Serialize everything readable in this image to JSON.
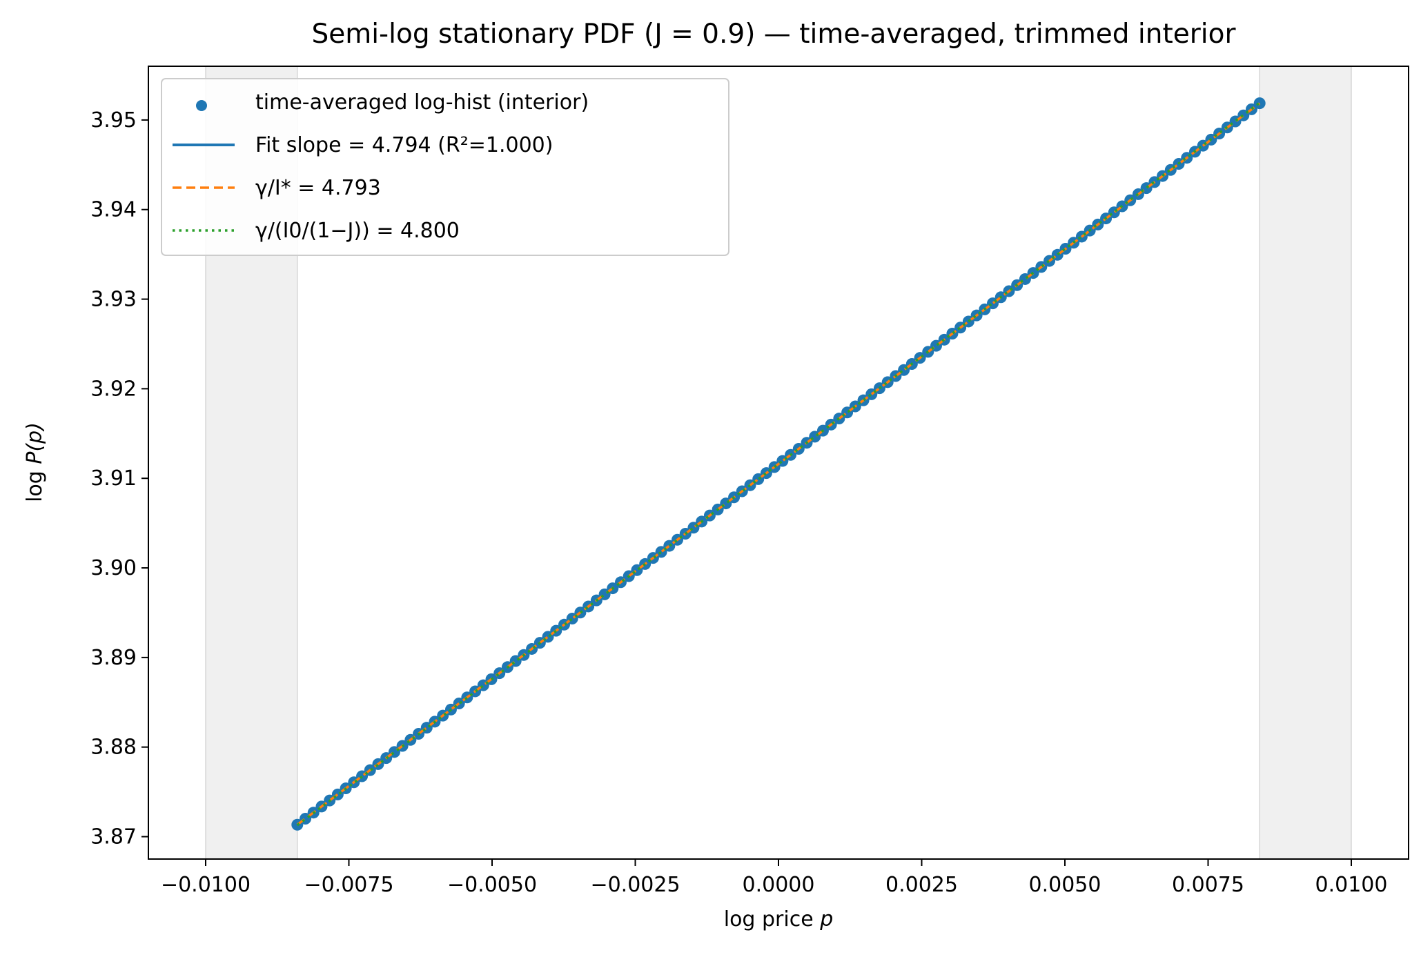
{
  "chart_data": {
    "type": "scatter",
    "title": "Semi-log stationary PDF (J = 0.9) — time-averaged, trimmed interior",
    "xlabel": {
      "prefix": "log price ",
      "var": "p"
    },
    "ylabel": {
      "prefix": "log ",
      "var": "P(p)"
    },
    "xlim": [
      -0.011,
      0.011
    ],
    "ylim": [
      3.8675,
      3.956
    ],
    "x_ticks": [
      -0.01,
      -0.0075,
      -0.005,
      -0.0025,
      0.0,
      0.0025,
      0.005,
      0.0075,
      0.01
    ],
    "x_tick_labels": [
      "−0.0100",
      "−0.0075",
      "−0.0050",
      "−0.0025",
      "0.0000",
      "0.0025",
      "0.0050",
      "0.0075",
      "0.0100"
    ],
    "y_ticks": [
      3.87,
      3.88,
      3.89,
      3.9,
      3.91,
      3.92,
      3.93,
      3.94,
      3.95
    ],
    "y_tick_labels": [
      "3.87",
      "3.88",
      "3.89",
      "3.90",
      "3.91",
      "3.92",
      "3.93",
      "3.94",
      "3.95"
    ],
    "shaded_regions": [
      [
        -0.01,
        -0.0084
      ],
      [
        0.0084,
        0.01
      ]
    ],
    "scatter_series": {
      "name": "time-averaged log-hist (interior)",
      "x_start": -0.0084,
      "x_end": 0.0084,
      "n_points": 120,
      "intercept": 3.9116,
      "slope": 4.794,
      "color": "#1f77b4"
    },
    "lines": [
      {
        "name": "Fit slope = 4.794 (R²=1.000)",
        "slope": 4.794,
        "intercept": 3.9116,
        "style": "solid",
        "color": "#1f77b4"
      },
      {
        "name": "γ/I* = 4.793",
        "slope": 4.793,
        "intercept": 3.9116,
        "style": "dashed",
        "color": "#ff7f0e"
      },
      {
        "name": "γ/(I0/(1−J)) = 4.800",
        "slope": 4.8,
        "intercept": 3.9116,
        "style": "dotted",
        "color": "#2ca02c"
      }
    ],
    "legend_position": "upper-left",
    "grid": false
  }
}
